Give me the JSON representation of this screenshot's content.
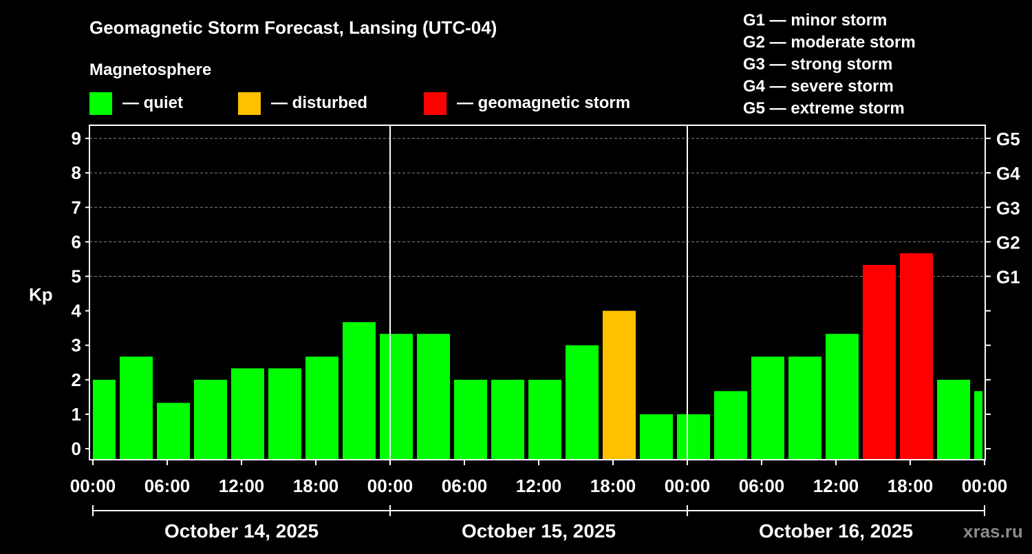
{
  "chart_data": {
    "type": "bar",
    "title": "Geomagnetic Storm Forecast, Lansing (UTC-04)",
    "legend_title": "Magnetosphere",
    "legend": [
      {
        "label": "— quiet",
        "color": "#00ff00"
      },
      {
        "label": "— disturbed",
        "color": "#ffc000"
      },
      {
        "label": "— geomagnetic storm",
        "color": "#ff0000"
      }
    ],
    "storm_scale": [
      "G1 — minor storm",
      "G2 — moderate storm",
      "G3 — strong storm",
      "G4 — severe storm",
      "G5 — extreme storm"
    ],
    "ylabel": "Kp",
    "ylim": [
      0,
      9
    ],
    "yticks": [
      "0",
      "1",
      "2",
      "3",
      "4",
      "5",
      "6",
      "7",
      "8",
      "9"
    ],
    "right_ticks": [
      {
        "kp": 5,
        "label": "G1"
      },
      {
        "kp": 6,
        "label": "G2"
      },
      {
        "kp": 7,
        "label": "G3"
      },
      {
        "kp": 8,
        "label": "G4"
      },
      {
        "kp": 9,
        "label": "G5"
      }
    ],
    "xticks": [
      "00:00",
      "06:00",
      "12:00",
      "18:00",
      "00:00",
      "06:00",
      "12:00",
      "18:00",
      "00:00",
      "06:00",
      "12:00",
      "18:00",
      "00:00"
    ],
    "days": [
      "October 14, 2025",
      "October 15, 2025",
      "October 16, 2025"
    ],
    "bar_start_hours": [
      -1,
      2,
      5,
      8,
      11,
      14,
      17,
      20,
      23,
      26,
      29,
      32,
      35,
      38,
      41,
      44,
      47,
      50,
      53,
      56,
      59,
      62,
      65,
      68,
      71
    ],
    "values": [
      2.0,
      2.67,
      1.33,
      2.0,
      2.33,
      2.33,
      2.67,
      3.67,
      3.33,
      3.33,
      2.0,
      2.0,
      2.0,
      3.0,
      4.0,
      1.0,
      1.0,
      1.67,
      2.67,
      2.67,
      3.33,
      5.33,
      5.67,
      2.0,
      1.67
    ],
    "status": [
      "quiet",
      "quiet",
      "quiet",
      "quiet",
      "quiet",
      "quiet",
      "quiet",
      "quiet",
      "quiet",
      "quiet",
      "quiet",
      "quiet",
      "quiet",
      "quiet",
      "disturbed",
      "quiet",
      "quiet",
      "quiet",
      "quiet",
      "quiet",
      "quiet",
      "storm",
      "storm",
      "quiet",
      "quiet"
    ],
    "colors": {
      "quiet": "#00ff00",
      "disturbed": "#ffc000",
      "storm": "#ff0000"
    },
    "watermark": "xras.ru"
  }
}
